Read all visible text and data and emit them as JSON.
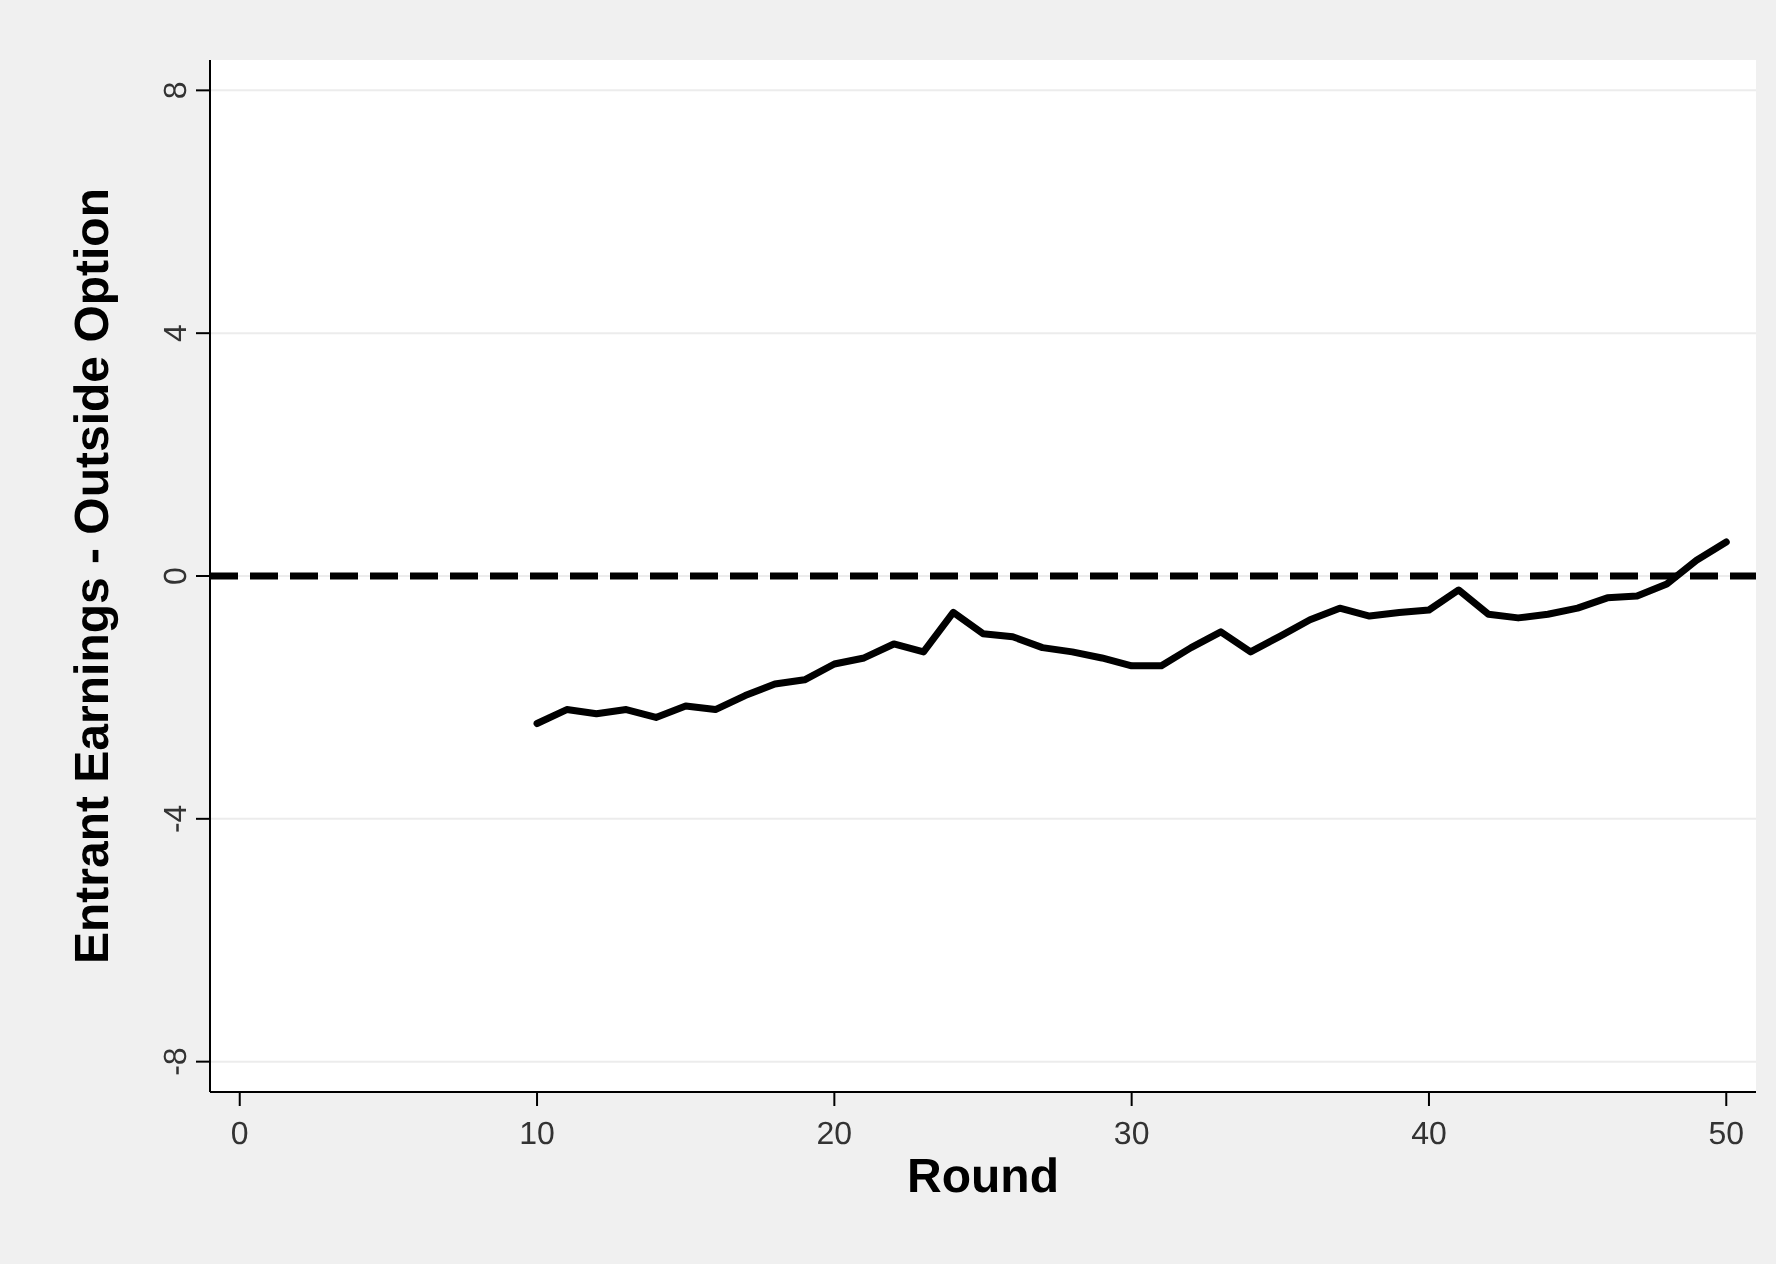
{
  "chart_data": {
    "type": "line",
    "xlabel": "Round",
    "ylabel": "Entrant Earnings - Outside Option",
    "xlim": [
      -1,
      51
    ],
    "xticks": [
      0,
      10,
      20,
      30,
      40,
      50
    ],
    "ylim": [
      -8.5,
      8.5
    ],
    "yticks": [
      -8,
      -4,
      0,
      4,
      8
    ],
    "grid": "y",
    "series": [
      {
        "color": "#000000",
        "line_style": "solid",
        "x": [
          10,
          11,
          12,
          13,
          14,
          15,
          16,
          17,
          18,
          19,
          20,
          21,
          22,
          23,
          24,
          25,
          26,
          27,
          28,
          29,
          30,
          31,
          32,
          33,
          34,
          35,
          36,
          37,
          38,
          39,
          40,
          41,
          42,
          43,
          44,
          45,
          46,
          47,
          48,
          49,
          50
        ],
        "values": [
          -2.43,
          -2.2,
          -2.27,
          -2.2,
          -2.33,
          -2.14,
          -2.2,
          -1.97,
          -1.78,
          -1.71,
          -1.45,
          -1.35,
          -1.12,
          -1.25,
          -0.6,
          -0.95,
          -1.0,
          -1.18,
          -1.25,
          -1.35,
          -1.48,
          -1.48,
          -1.18,
          -0.92,
          -1.25,
          -0.99,
          -0.72,
          -0.53,
          -0.66,
          -0.6,
          -0.56,
          -0.23,
          -0.63,
          -0.69,
          -0.63,
          -0.53,
          -0.36,
          -0.33,
          -0.13,
          0.26,
          0.56
        ]
      }
    ],
    "ref_lines": [
      {
        "axis": "y",
        "value": 0,
        "color": "#000000",
        "line_style": "dashed"
      }
    ]
  }
}
